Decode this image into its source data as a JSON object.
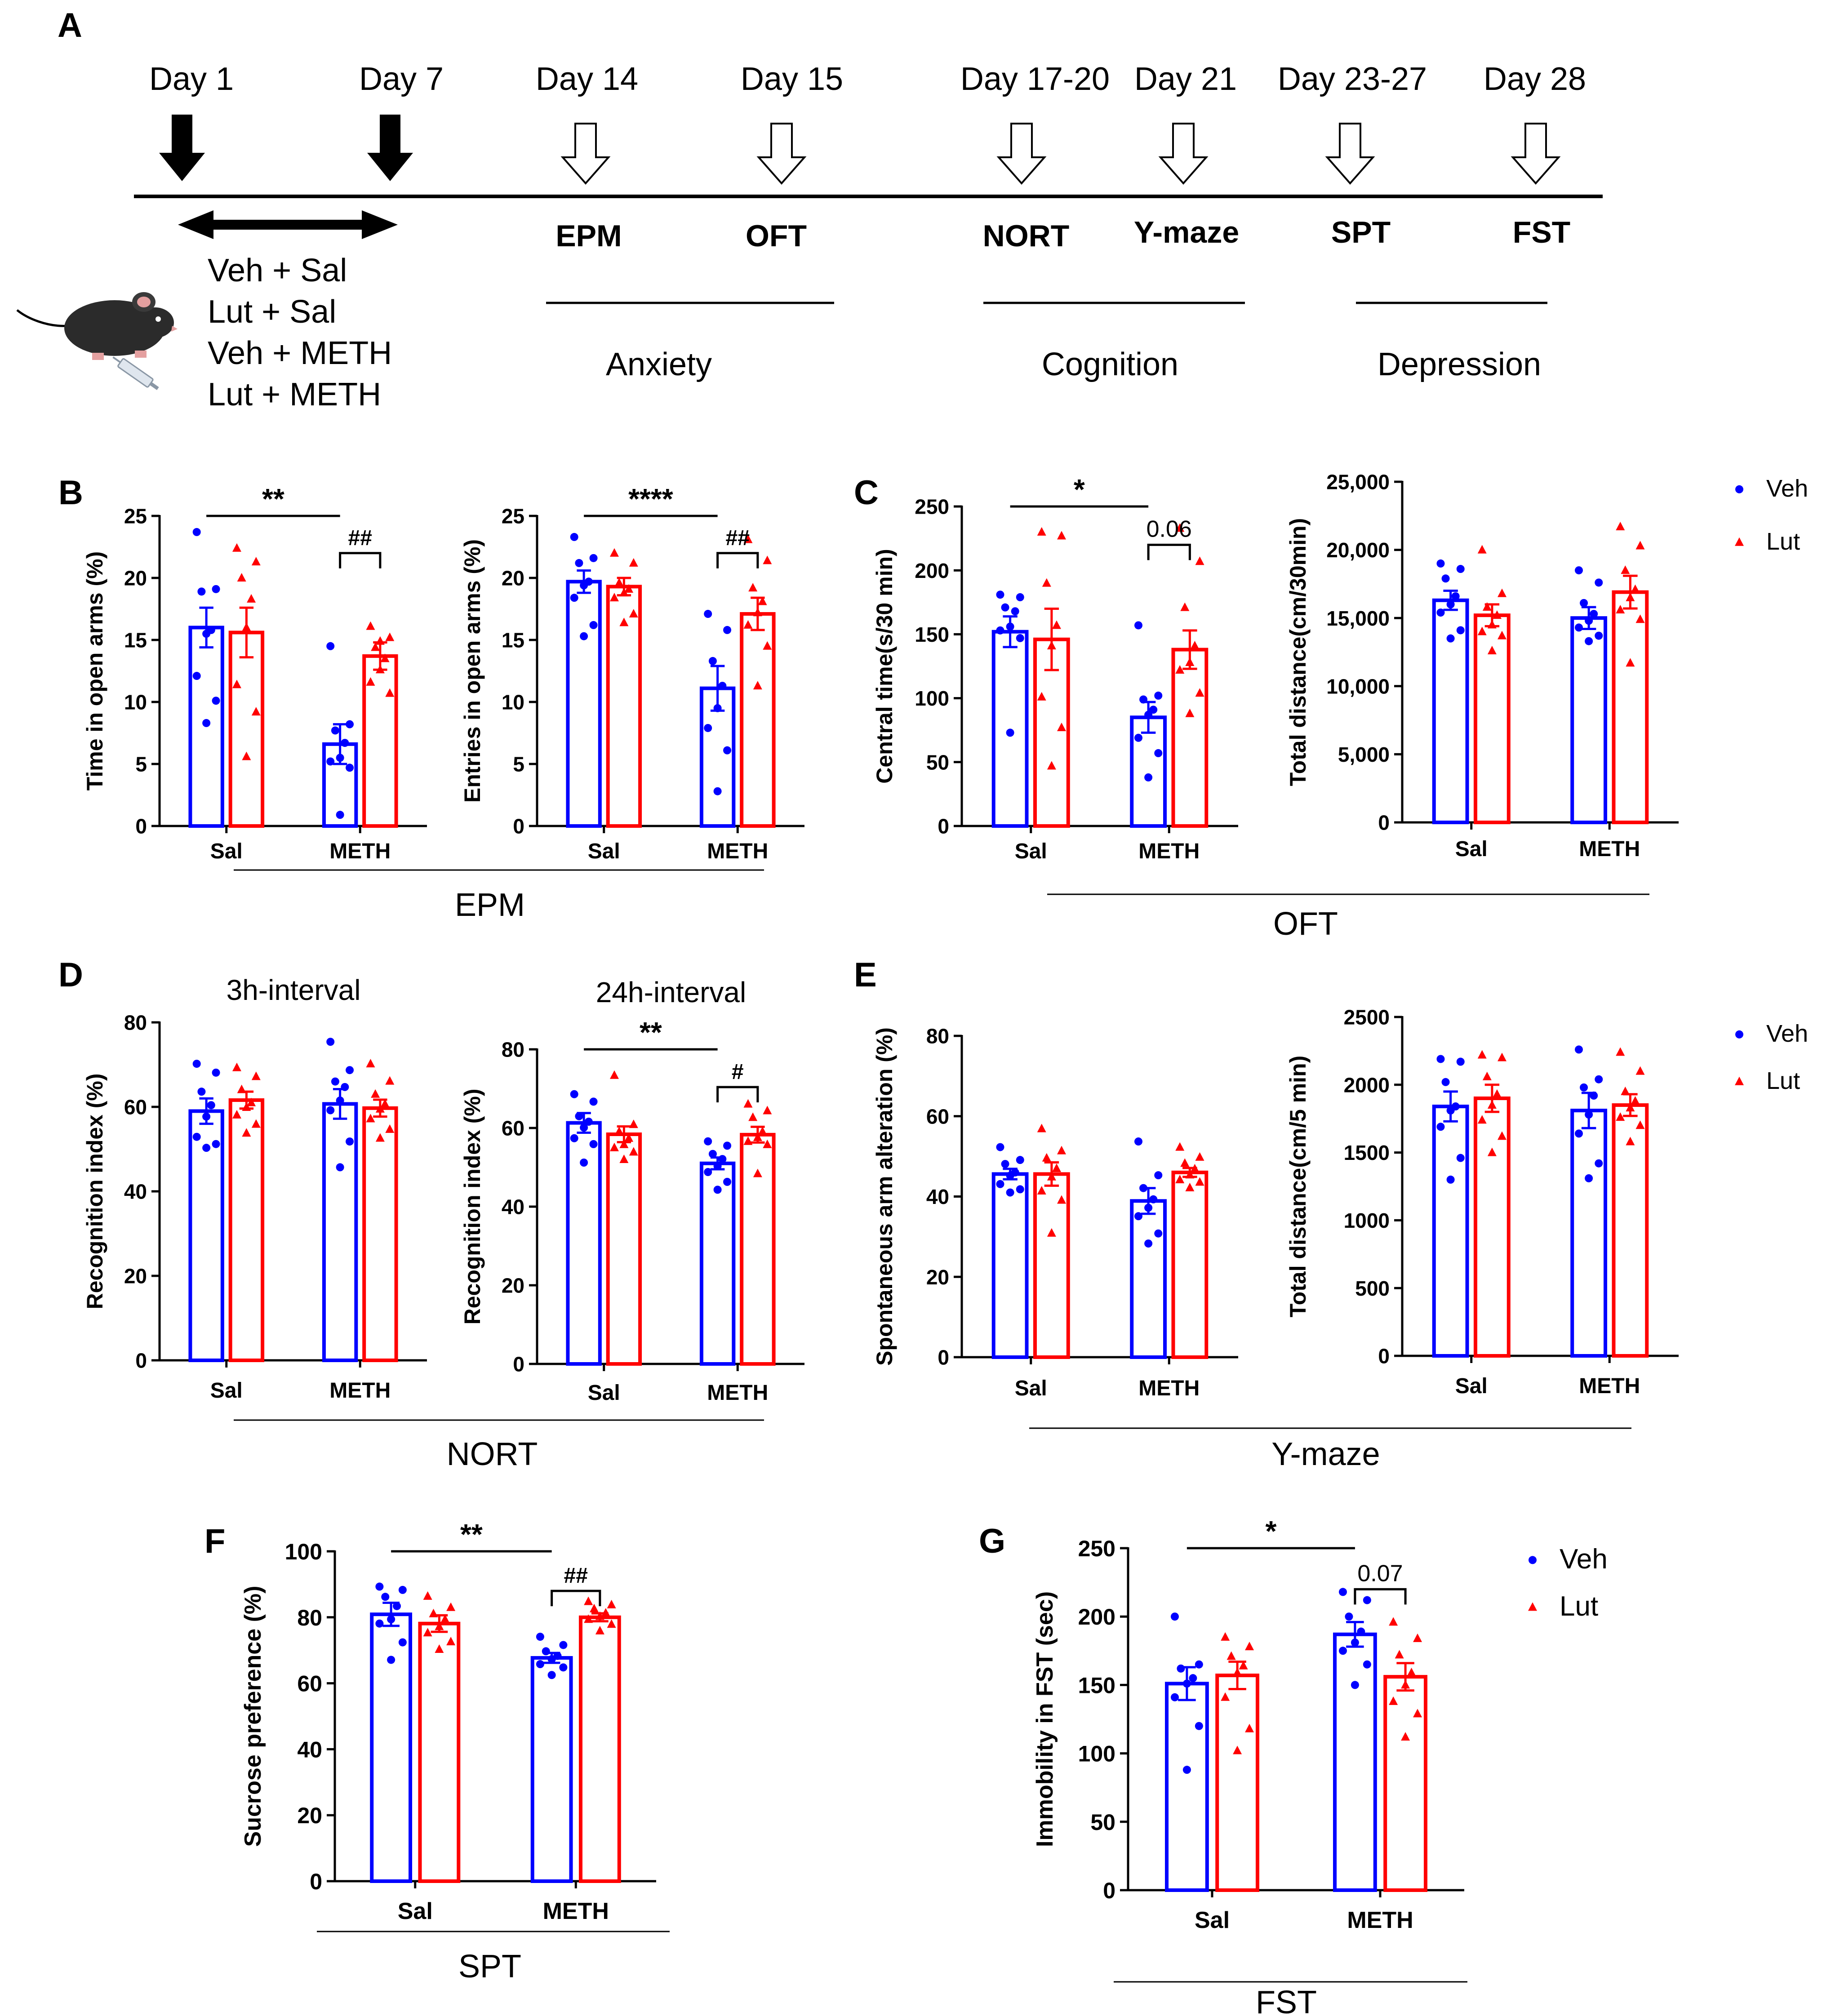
{
  "colors": {
    "veh": "#0000ff",
    "lut": "#ff0000",
    "ink": "#000000"
  },
  "panel_a": {
    "label": "A",
    "days": [
      {
        "text": "Day 1",
        "arrow": "filled"
      },
      {
        "text": "Day 7",
        "arrow": "filled"
      },
      {
        "text": "Day 14",
        "arrow": "open"
      },
      {
        "text": "Day 15",
        "arrow": "open"
      },
      {
        "text": "Day 17-20",
        "arrow": "open"
      },
      {
        "text": "Day 21",
        "arrow": "open"
      },
      {
        "text": "Day 23-27",
        "arrow": "open"
      },
      {
        "text": "Day 28",
        "arrow": "open"
      }
    ],
    "tests": [
      "EPM",
      "OFT",
      "NORT",
      "Y-maze",
      "SPT",
      "FST"
    ],
    "domains": [
      "Anxiety",
      "Cognition",
      "Depression"
    ],
    "groups": [
      "Veh + Sal",
      "Lut + Sal",
      "Veh + METH",
      "Lut + METH"
    ],
    "mouse_icon": "mouse-injection-icon"
  },
  "groups": {
    "veh": "Veh",
    "lut": "Lut"
  },
  "conditions": [
    "Sal",
    "METH"
  ],
  "sections": [
    {
      "id": "epm",
      "label": "EPM"
    },
    {
      "id": "oft",
      "label": "OFT"
    },
    {
      "id": "nort",
      "label": "NORT"
    },
    {
      "id": "ymaze",
      "label": "Y-maze"
    },
    {
      "id": "spt",
      "label": "SPT"
    },
    {
      "id": "fst",
      "label": "FST"
    }
  ],
  "chart_data": [
    {
      "id": "b1",
      "panel_label": "B",
      "type": "bar",
      "title": "",
      "ylabel": "Time in open arms (%)",
      "ylim": [
        0,
        25
      ],
      "ticks": [
        "0",
        "5",
        "10",
        "15",
        "20",
        "25"
      ],
      "categories": [
        "Sal",
        "METH"
      ],
      "series": [
        {
          "name": "Veh",
          "values": [
            16.0,
            6.6
          ],
          "sem": [
            1.6,
            1.6
          ],
          "points": [
            [
              23.7,
              19.1,
              18.9,
              15.8,
              15.5,
              12.1,
              10.1,
              8.3
            ],
            [
              14.5,
              8.2,
              7.7,
              6.7,
              5.5,
              5.2,
              4.7,
              0.9
            ]
          ]
        },
        {
          "name": "Lut",
          "values": [
            15.6,
            13.7
          ],
          "sem": [
            2.0,
            1.1
          ],
          "points": [
            [
              22.4,
              21.3,
              20.0,
              18.3,
              16.0,
              11.4,
              9.2,
              5.6
            ],
            [
              16.1,
              15.2,
              14.4,
              13.5,
              12.6,
              11.6,
              10.7,
              14.9
            ]
          ]
        }
      ],
      "annotations": [
        {
          "type": "line",
          "label": "**",
          "from": 0,
          "to": 1
        },
        {
          "type": "bracket",
          "label": "##",
          "cat": 1
        }
      ]
    },
    {
      "id": "b2",
      "type": "bar",
      "title": "",
      "ylabel": "Entries in open arms (%)",
      "ylim": [
        0,
        25
      ],
      "ticks": [
        "0",
        "5",
        "10",
        "15",
        "20",
        "25"
      ],
      "categories": [
        "Sal",
        "METH"
      ],
      "series": [
        {
          "name": "Veh",
          "values": [
            19.7,
            11.1
          ],
          "sem": [
            0.9,
            1.8
          ],
          "points": [
            [
              23.3,
              21.6,
              21.2,
              19.7,
              19.4,
              18.4,
              16.2,
              15.3
            ],
            [
              17.1,
              15.8,
              13.3,
              11.3,
              9.5,
              7.9,
              6.1,
              2.8
            ]
          ]
        },
        {
          "name": "Lut",
          "values": [
            19.3,
            17.1
          ],
          "sem": [
            0.7,
            1.3
          ],
          "points": [
            [
              22.0,
              21.2,
              19.6,
              19.1,
              18.8,
              18.4,
              17.1,
              16.4
            ],
            [
              23.1,
              21.4,
              19.2,
              18.1,
              17.2,
              16.2,
              14.5,
              11.3
            ]
          ]
        }
      ],
      "annotations": [
        {
          "type": "line",
          "label": "****",
          "from": 0,
          "to": 1
        },
        {
          "type": "bracket",
          "label": "##",
          "cat": 1
        }
      ]
    },
    {
      "id": "c1",
      "panel_label": "C",
      "type": "bar",
      "title": "",
      "ylabel": "Central time(s/30 min)",
      "ylim": [
        0,
        250
      ],
      "ticks": [
        "0",
        "50",
        "100",
        "150",
        "200",
        "250"
      ],
      "categories": [
        "Sal",
        "METH"
      ],
      "series": [
        {
          "name": "Veh",
          "values": [
            152,
            85
          ],
          "sem": [
            12,
            12
          ],
          "points": [
            [
              181,
              179,
              171,
              168,
              156,
              153,
              147,
              73
            ],
            [
              157,
              102,
              99,
              91,
              87,
              69,
              57,
              38
            ]
          ]
        },
        {
          "name": "Lut",
          "values": [
            146,
            138
          ],
          "sem": [
            24,
            15
          ],
          "points": [
            [
              230,
              227,
              190,
              157,
              141,
              101,
              77,
              47
            ],
            [
              233,
              207,
              171,
              141,
              128,
              122,
              104,
              88
            ]
          ]
        }
      ],
      "annotations": [
        {
          "type": "line",
          "label": "*",
          "from": 0,
          "to": 1
        },
        {
          "type": "bracket",
          "label": "0.06",
          "cat": 1
        }
      ]
    },
    {
      "id": "c2",
      "type": "bar",
      "title": "",
      "ylabel": "Total distance(cm/30min)",
      "ylim": [
        0,
        25000
      ],
      "ticks": [
        "0",
        "5,000",
        "10,000",
        "15,000",
        "20,000",
        "25,000"
      ],
      "categories": [
        "Sal",
        "METH"
      ],
      "series": [
        {
          "name": "Veh",
          "values": [
            16300,
            15000
          ],
          "sem": [
            700,
            800
          ],
          "points": [
            [
              19000,
              18600,
              17900,
              16600,
              16000,
              15400,
              14100,
              13500
            ],
            [
              18500,
              17600,
              16100,
              15300,
              14800,
              14300,
              13700,
              13300
            ]
          ]
        },
        {
          "name": "Lut",
          "values": [
            15200,
            16900
          ],
          "sem": [
            800,
            1200
          ],
          "points": [
            [
              20000,
              16800,
              15800,
              15200,
              14500,
              14000,
              13700,
              12600
            ],
            [
              21700,
              20300,
              18500,
              17100,
              16500,
              15600,
              14900,
              11700
            ]
          ]
        }
      ],
      "annotations": [],
      "legend": true
    },
    {
      "id": "d1",
      "panel_label": "D",
      "type": "bar",
      "title": "3h-interval",
      "ylabel": "Recognition index (%)",
      "ylim": [
        0,
        80
      ],
      "ticks": [
        "0",
        "20",
        "40",
        "60",
        "80"
      ],
      "categories": [
        "Sal",
        "METH"
      ],
      "series": [
        {
          "name": "Veh",
          "values": [
            59.0,
            60.7
          ],
          "sem": [
            3.0,
            3.5
          ],
          "points": [
            [
              70.2,
              68.1,
              63.6,
              60.4,
              57.7,
              52.9,
              51.2,
              50.3
            ],
            [
              75.4,
              68.7,
              66.0,
              64.7,
              61.5,
              59.2,
              51.8,
              45.7
            ]
          ]
        },
        {
          "name": "Lut",
          "values": [
            61.6,
            59.7
          ],
          "sem": [
            2.0,
            2.0
          ],
          "points": [
            [
              69.3,
              67.2,
              64.1,
              61.0,
              59.9,
              58.1,
              55.9,
              53.8
            ],
            [
              70.2,
              66.1,
              63.0,
              60.7,
              59.5,
              57.2,
              54.7,
              52.6
            ]
          ]
        }
      ],
      "annotations": []
    },
    {
      "id": "d2",
      "type": "bar",
      "title": "24h-interval",
      "ylabel": "Recognition index (%)",
      "ylim": [
        0,
        80
      ],
      "ticks": [
        "0",
        "20",
        "40",
        "60",
        "80"
      ],
      "categories": [
        "Sal",
        "METH"
      ],
      "series": [
        {
          "name": "Veh",
          "values": [
            61.3,
            51.0
          ],
          "sem": [
            2.5,
            1.5
          ],
          "points": [
            [
              68.6,
              66.7,
              63.0,
              61.6,
              60.1,
              57.4,
              55.9,
              51.2
            ],
            [
              56.6,
              55.5,
              53.4,
              52.1,
              50.3,
              48.8,
              46.3,
              44.3
            ]
          ]
        },
        {
          "name": "Lut",
          "values": [
            58.4,
            58.3
          ],
          "sem": [
            2.0,
            2.0
          ],
          "points": [
            [
              73.4,
              60.9,
              59.1,
              57.4,
              55.8,
              55.0,
              53.9,
              52.0
            ],
            [
              66.1,
              64.4,
              62.7,
              59.1,
              57.6,
              56.6,
              55.8,
              48.4
            ]
          ]
        }
      ],
      "annotations": [
        {
          "type": "line",
          "label": "**",
          "from": 0,
          "to": 1
        },
        {
          "type": "bracket",
          "label": "#",
          "cat": 1
        }
      ]
    },
    {
      "id": "e1",
      "panel_label": "E",
      "type": "bar",
      "title": "",
      "ylabel": "Spontaneous arm alteration (%)",
      "ylim": [
        0,
        80
      ],
      "ticks": [
        "0",
        "20",
        "40",
        "60",
        "80"
      ],
      "categories": [
        "Sal",
        "METH"
      ],
      "series": [
        {
          "name": "Veh",
          "values": [
            45.6,
            38.9
          ],
          "sem": [
            1.3,
            3.2
          ],
          "points": [
            [
              52.3,
              49.1,
              48.1,
              46.0,
              45.2,
              43.1,
              41.8,
              41.0
            ],
            [
              53.7,
              45.3,
              42.1,
              39.3,
              37.2,
              35.1,
              30.8,
              28.3
            ]
          ]
        },
        {
          "name": "Lut",
          "values": [
            45.6,
            46.0
          ],
          "sem": [
            2.9,
            1.1
          ],
          "points": [
            [
              56.9,
              51.4,
              49.6,
              47.0,
              44.9,
              41.4,
              39.1,
              30.9
            ],
            [
              52.3,
              49.8,
              48.3,
              46.9,
              45.4,
              44.2,
              43.6,
              42.2
            ]
          ]
        }
      ],
      "annotations": []
    },
    {
      "id": "e2",
      "type": "bar",
      "title": "",
      "ylabel": "Total distance(cm/5 min)",
      "ylim": [
        0,
        2500
      ],
      "ticks": [
        "0",
        "500",
        "1000",
        "1500",
        "2000",
        "2500"
      ],
      "categories": [
        "Sal",
        "METH"
      ],
      "series": [
        {
          "name": "Veh",
          "values": [
            1840,
            1810
          ],
          "sem": [
            110,
            130
          ],
          "points": [
            [
              2190,
              2170,
              2020,
              1840,
              1810,
              1690,
              1460,
              1300
            ],
            [
              2260,
              2040,
              1980,
              1920,
              1780,
              1640,
              1420,
              1310
            ]
          ]
        },
        {
          "name": "Lut",
          "values": [
            1900,
            1850
          ],
          "sem": [
            100,
            80
          ],
          "points": [
            [
              2220,
              2200,
              2060,
              1930,
              1850,
              1740,
              1620,
              1500
            ],
            [
              2240,
              2100,
              1950,
              1880,
              1830,
              1760,
              1700,
              1580
            ]
          ]
        }
      ],
      "annotations": [],
      "legend": true
    },
    {
      "id": "f",
      "panel_label": "F",
      "type": "bar",
      "title": "",
      "ylabel": "Sucrose preference (%)",
      "ylim": [
        0,
        100
      ],
      "ticks": [
        "0",
        "20",
        "40",
        "60",
        "80",
        "100"
      ],
      "categories": [
        "Sal",
        "METH"
      ],
      "series": [
        {
          "name": "Veh",
          "values": [
            80.9,
            67.7
          ],
          "sem": [
            3.5,
            1.5
          ],
          "points": [
            [
              89.3,
              88.3,
              86.2,
              83.4,
              79.4,
              78.1,
              72.4,
              67.1
            ],
            [
              74.1,
              71.6,
              69.7,
              68.3,
              67.3,
              65.8,
              64.8,
              62.5
            ]
          ]
        },
        {
          "name": "Lut",
          "values": [
            78.1,
            80.0
          ],
          "sem": [
            2.5,
            1.2
          ],
          "points": [
            [
              86.4,
              83.0,
              81.1,
              79.4,
              77.2,
              75.3,
              72.6,
              70.3
            ],
            [
              84.8,
              83.8,
              82.6,
              81.3,
              80.3,
              79.4,
              77.9,
              75.9
            ]
          ]
        }
      ],
      "annotations": [
        {
          "type": "line",
          "label": "**",
          "from": 0,
          "to": 1
        },
        {
          "type": "bracket",
          "label": "##",
          "cat": 1
        }
      ]
    },
    {
      "id": "g",
      "panel_label": "G",
      "type": "bar",
      "title": "",
      "ylabel": "Immobility in FST (sec)",
      "ylim": [
        0,
        250
      ],
      "ticks": [
        "0",
        "50",
        "100",
        "150",
        "200",
        "250"
      ],
      "categories": [
        "Sal",
        "METH"
      ],
      "series": [
        {
          "name": "Veh",
          "values": [
            151,
            187
          ],
          "sem": [
            12,
            9
          ],
          "points": [
            [
              200,
              165,
              162,
              155,
              151,
              141,
              120,
              88
            ],
            [
              218,
              212,
              200,
              189,
              181,
              175,
              165,
              150
            ]
          ]
        },
        {
          "name": "Lut",
          "values": [
            157,
            156
          ],
          "sem": [
            10,
            10
          ],
          "points": [
            [
              185,
              178,
              171,
              164,
              159,
              141,
              118,
              102
            ],
            [
              196,
              184,
              172,
              159,
              150,
              138,
              129,
              112
            ]
          ]
        }
      ],
      "annotations": [
        {
          "type": "line",
          "label": "*",
          "from": 0,
          "to": 1
        },
        {
          "type": "bracket",
          "label": "0.07",
          "cat": 1
        }
      ],
      "legend": true
    }
  ]
}
